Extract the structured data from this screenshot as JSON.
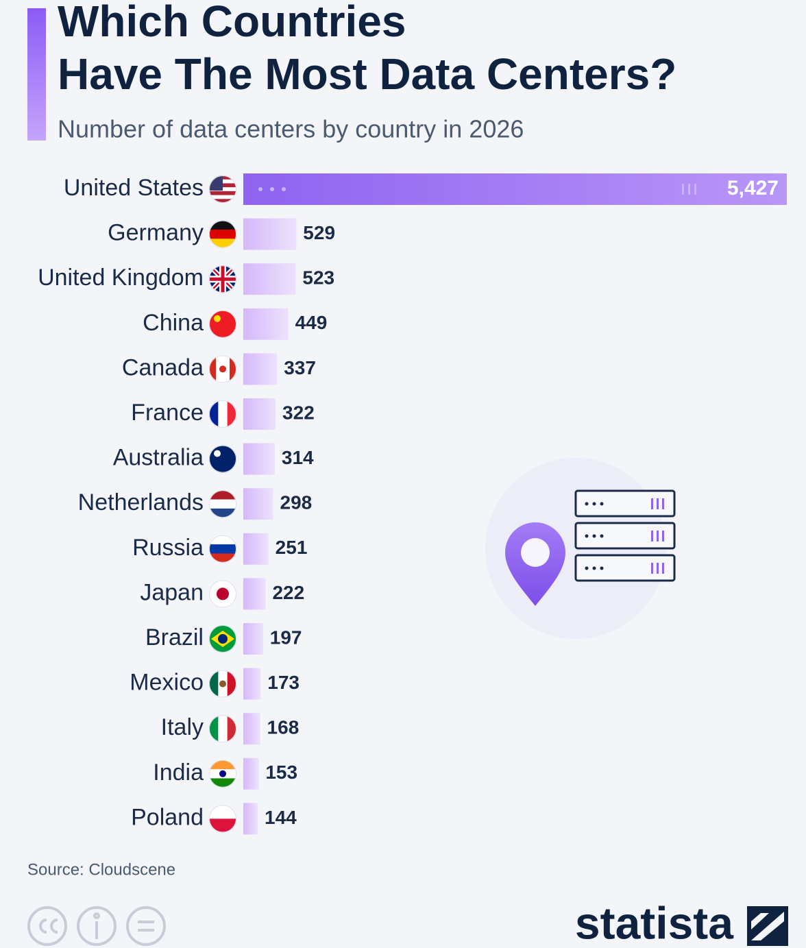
{
  "chart_data": {
    "type": "bar",
    "orientation": "horizontal",
    "title": [
      "Which Countries",
      "Have The Most Data Centers?"
    ],
    "subtitle": "Number of data centers by country in 2026",
    "categories": [
      "United States",
      "Germany",
      "United Kingdom",
      "China",
      "Canada",
      "France",
      "Australia",
      "Netherlands",
      "Russia",
      "Japan",
      "Brazil",
      "Mexico",
      "Italy",
      "India",
      "Poland"
    ],
    "values": [
      5427,
      529,
      523,
      449,
      337,
      322,
      314,
      298,
      251,
      222,
      197,
      173,
      168,
      153,
      144
    ],
    "value_labels": [
      "5,427",
      "529",
      "523",
      "449",
      "337",
      "322",
      "314",
      "298",
      "251",
      "222",
      "197",
      "173",
      "168",
      "153",
      "144"
    ],
    "highlight_color": "#8d63f0",
    "color": "#d9bdfb",
    "source": "Source: Cloudscene",
    "logo": "statista"
  }
}
